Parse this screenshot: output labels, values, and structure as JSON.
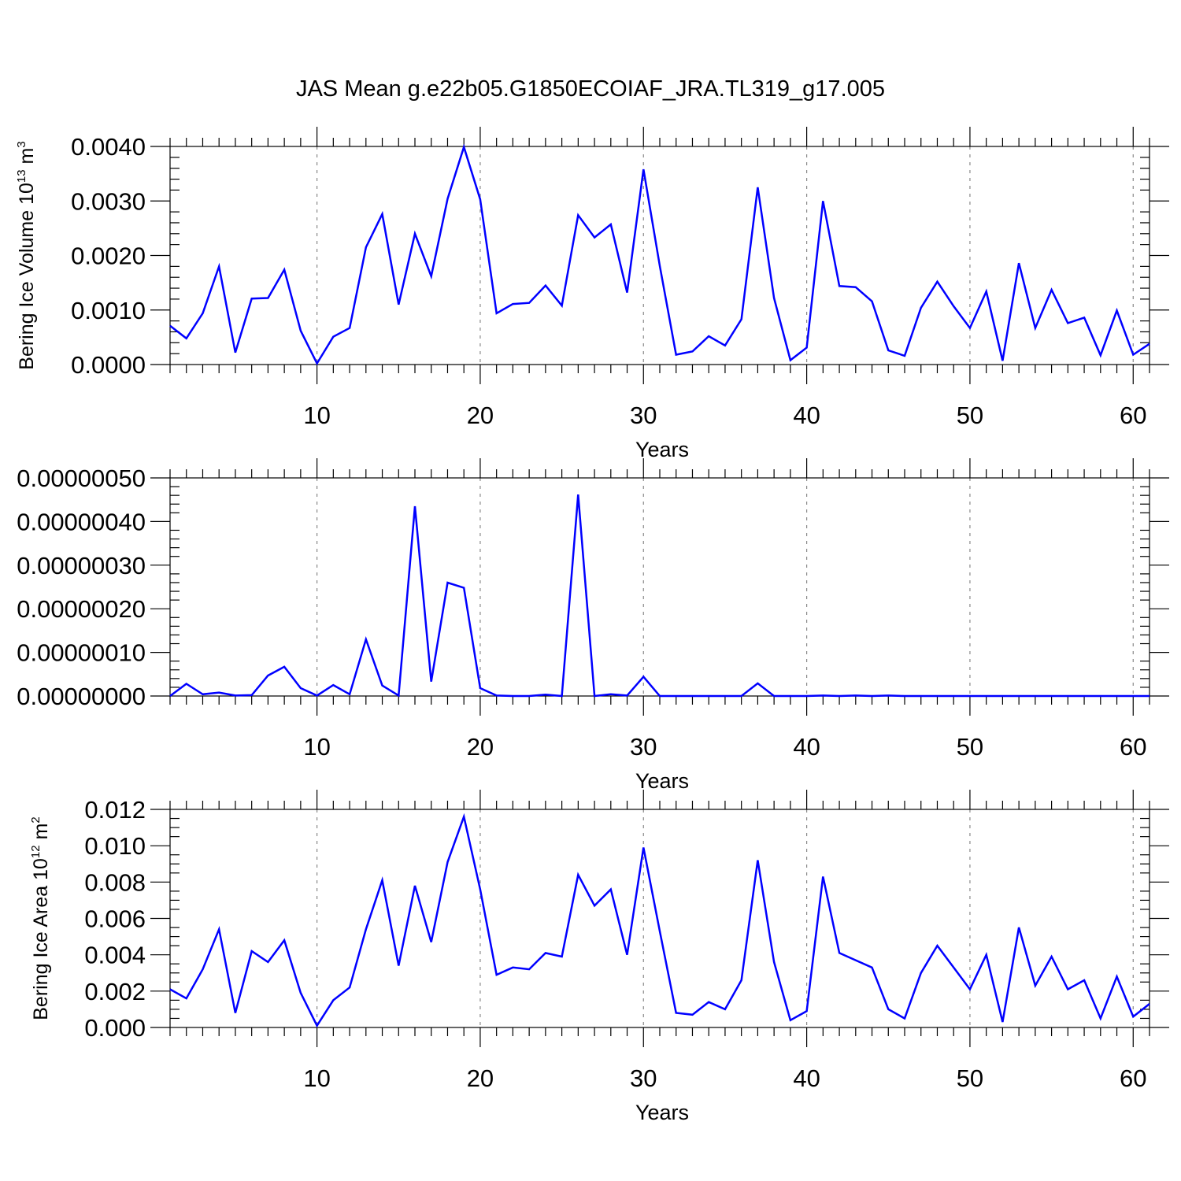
{
  "title": "JAS Mean g.e22b05.G1850ECOIAF_JRA.TL319_g17.005",
  "series_color": "#0000ff",
  "chart_data": [
    {
      "type": "line",
      "title": "",
      "xlabel": "Years",
      "ylabel": {
        "text": "Bering Ice Volume 10",
        "sup": "13",
        "unit": " m",
        "unit_sup": "3"
      },
      "xlim": [
        1,
        61
      ],
      "ylim": [
        0,
        0.004
      ],
      "xticks": [
        10,
        20,
        30,
        40,
        50,
        60
      ],
      "xtick_labels": [
        "10",
        "20",
        "30",
        "40",
        "50",
        "60"
      ],
      "yticks": [
        0,
        0.001,
        0.002,
        0.003,
        0.004
      ],
      "ytick_labels": [
        "0.0000",
        "0.0010",
        "0.0020",
        "0.0030",
        "0.0040"
      ],
      "grid": "vertical-dashed",
      "x": [
        1,
        2,
        3,
        4,
        5,
        6,
        7,
        8,
        9,
        10,
        11,
        12,
        13,
        14,
        15,
        16,
        17,
        18,
        19,
        20,
        21,
        22,
        23,
        24,
        25,
        26,
        27,
        28,
        29,
        30,
        31,
        32,
        33,
        34,
        35,
        36,
        37,
        38,
        39,
        40,
        41,
        42,
        43,
        44,
        45,
        46,
        47,
        48,
        49,
        50,
        51,
        52,
        53,
        54,
        55,
        56,
        57,
        58,
        59,
        60,
        61
      ],
      "y": [
        0.00071,
        0.00048,
        0.00094,
        0.0018,
        0.00022,
        0.00121,
        0.00122,
        0.00174,
        0.00062,
        2e-05,
        0.00051,
        0.00067,
        0.00215,
        0.00276,
        0.0011,
        0.0024,
        0.00162,
        0.00304,
        0.00399,
        0.00303,
        0.00094,
        0.00111,
        0.00113,
        0.00145,
        0.00108,
        0.00274,
        0.00233,
        0.00257,
        0.00132,
        0.00358,
        0.00181,
        0.00018,
        0.00024,
        0.00052,
        0.00035,
        0.00083,
        0.00325,
        0.00122,
        8e-05,
        0.00031,
        0.003,
        0.00144,
        0.00142,
        0.00116,
        0.00026,
        0.00016,
        0.00104,
        0.00152,
        0.00107,
        0.00067,
        0.00134,
        7e-05,
        0.00186,
        0.00067,
        0.00137,
        0.00076,
        0.00086,
        0.00017,
        0.00099,
        0.00018,
        0.00038
      ]
    },
    {
      "type": "line",
      "title": "",
      "xlabel": "Years",
      "ylabel": {
        "text": "",
        "sup": "",
        "unit": "",
        "unit_sup": ""
      },
      "xlim": [
        1,
        61
      ],
      "ylim": [
        0,
        5e-07
      ],
      "xticks": [
        10,
        20,
        30,
        40,
        50,
        60
      ],
      "xtick_labels": [
        "10",
        "20",
        "30",
        "40",
        "50",
        "60"
      ],
      "yticks": [
        0,
        1e-07,
        2e-07,
        3e-07,
        4e-07,
        5e-07
      ],
      "ytick_labels": [
        "0.00000000",
        "0.00000010",
        "0.00000020",
        "0.00000030",
        "0.00000040",
        "0.00000050"
      ],
      "grid": "vertical-dashed",
      "x": [
        1,
        2,
        3,
        4,
        5,
        6,
        7,
        8,
        9,
        10,
        11,
        12,
        13,
        14,
        15,
        16,
        17,
        18,
        19,
        20,
        21,
        22,
        23,
        24,
        25,
        26,
        27,
        28,
        29,
        30,
        31,
        32,
        33,
        34,
        35,
        36,
        37,
        38,
        39,
        40,
        41,
        42,
        43,
        44,
        45,
        46,
        47,
        48,
        49,
        50,
        51,
        52,
        53,
        54,
        55,
        56,
        57,
        58,
        59,
        60,
        61
      ],
      "y": [
        0,
        2.8e-08,
        4e-09,
        8e-09,
        1e-09,
        2e-09,
        4.7e-08,
        6.7e-08,
        1.8e-08,
        1e-09,
        2.5e-08,
        4e-09,
        1.3e-07,
        2.4e-08,
        1e-09,
        4.35e-07,
        3.3e-08,
        2.6e-07,
        2.48e-07,
        1.8e-08,
        1e-09,
        0,
        0,
        3e-09,
        0,
        4.62e-07,
        0,
        4e-09,
        1e-09,
        4.4e-08,
        0,
        0,
        0,
        0,
        0,
        0,
        2.9e-08,
        0,
        0,
        0,
        1e-09,
        0,
        1e-09,
        0,
        1e-09,
        0,
        0,
        0,
        0,
        0,
        0,
        0,
        0,
        0,
        0,
        0,
        0,
        0,
        0,
        0,
        0
      ]
    },
    {
      "type": "line",
      "title": "",
      "xlabel": "Years",
      "ylabel": {
        "text": "Bering Ice Area 10",
        "sup": "12",
        "unit": " m",
        "unit_sup": "2"
      },
      "xlim": [
        1,
        61
      ],
      "ylim": [
        0,
        0.012
      ],
      "xticks": [
        10,
        20,
        30,
        40,
        50,
        60
      ],
      "xtick_labels": [
        "10",
        "20",
        "30",
        "40",
        "50",
        "60"
      ],
      "yticks": [
        0,
        0.002,
        0.004,
        0.006,
        0.008,
        0.01,
        0.012
      ],
      "ytick_labels": [
        "0.000",
        "0.002",
        "0.004",
        "0.006",
        "0.008",
        "0.010",
        "0.012"
      ],
      "grid": "vertical-dashed",
      "x": [
        1,
        2,
        3,
        4,
        5,
        6,
        7,
        8,
        9,
        10,
        11,
        12,
        13,
        14,
        15,
        16,
        17,
        18,
        19,
        20,
        21,
        22,
        23,
        24,
        25,
        26,
        27,
        28,
        29,
        30,
        31,
        32,
        33,
        34,
        35,
        36,
        37,
        38,
        39,
        40,
        41,
        42,
        43,
        44,
        45,
        46,
        47,
        48,
        49,
        50,
        51,
        52,
        53,
        54,
        55,
        56,
        57,
        58,
        59,
        60,
        61
      ],
      "y": [
        0.0021,
        0.0016,
        0.0032,
        0.0054,
        0.0008,
        0.0042,
        0.0036,
        0.0048,
        0.0019,
        0.0001,
        0.0015,
        0.0022,
        0.0054,
        0.0081,
        0.0034,
        0.0078,
        0.0047,
        0.0091,
        0.0116,
        0.0076,
        0.0029,
        0.0033,
        0.0032,
        0.0041,
        0.0039,
        0.0084,
        0.0067,
        0.0076,
        0.004,
        0.0099,
        0.0053,
        0.0008,
        0.0007,
        0.0014,
        0.001,
        0.0026,
        0.0092,
        0.0036,
        0.0004,
        0.0009,
        0.0083,
        0.0041,
        0.0037,
        0.0033,
        0.001,
        0.0005,
        0.003,
        0.0045,
        0.0033,
        0.0021,
        0.004,
        0.0003,
        0.0055,
        0.0023,
        0.0039,
        0.0021,
        0.0026,
        0.0005,
        0.0028,
        0.0006,
        0.0013
      ]
    }
  ]
}
